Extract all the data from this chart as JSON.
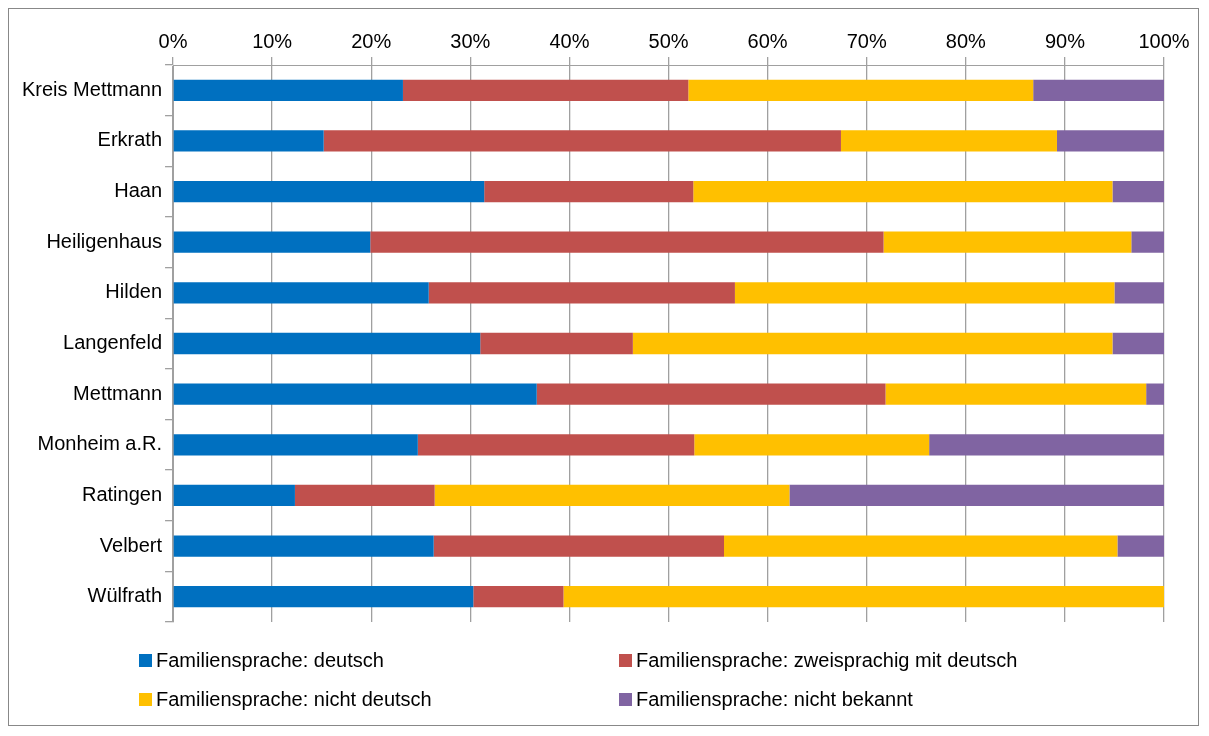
{
  "chart_data": {
    "type": "bar",
    "orientation": "horizontal",
    "stacked": true,
    "categories": [
      "Kreis Mettmann",
      "Erkrath",
      "Haan",
      "Heiligenhaus",
      "Hilden",
      "Langenfeld",
      "Mettmann",
      "Monheim a.R.",
      "Ratingen",
      "Velbert",
      "Wülfrath"
    ],
    "series": [
      {
        "name": "Familiensprache: deutsch",
        "color": "#0070c0",
        "values": [
          23.2,
          15.2,
          31.4,
          19.9,
          25.8,
          31.0,
          36.7,
          24.7,
          12.3,
          26.3,
          30.3
        ]
      },
      {
        "name": "Familiensprache: zweisprachig mit deutsch",
        "color": "#c0504d",
        "values": [
          28.8,
          52.2,
          21.1,
          51.8,
          30.9,
          15.4,
          35.2,
          27.9,
          14.1,
          29.3,
          9.1
        ]
      },
      {
        "name": "Familiensprache: nicht deutsch",
        "color": "#ffc000",
        "values": [
          34.8,
          21.8,
          42.3,
          25.0,
          38.3,
          48.4,
          26.3,
          23.7,
          35.8,
          39.7,
          60.6
        ]
      },
      {
        "name": "Familiensprache: nicht bekannt",
        "color": "#8064a2",
        "values": [
          13.2,
          10.8,
          5.2,
          3.3,
          5.0,
          5.2,
          1.8,
          23.7,
          37.8,
          4.7,
          0
        ]
      }
    ],
    "xlim": [
      0,
      100
    ],
    "xticks": [
      {
        "value": 0,
        "label": "0%"
      },
      {
        "value": 10,
        "label": "10%"
      },
      {
        "value": 20,
        "label": "20%"
      },
      {
        "value": 30,
        "label": "30%"
      },
      {
        "value": 40,
        "label": "40%"
      },
      {
        "value": 50,
        "label": "50%"
      },
      {
        "value": 60,
        "label": "60%"
      },
      {
        "value": 70,
        "label": "70%"
      },
      {
        "value": 80,
        "label": "80%"
      },
      {
        "value": 90,
        "label": "90%"
      },
      {
        "value": 100,
        "label": "100%"
      }
    ],
    "grid": "x",
    "legend": "bottom"
  }
}
